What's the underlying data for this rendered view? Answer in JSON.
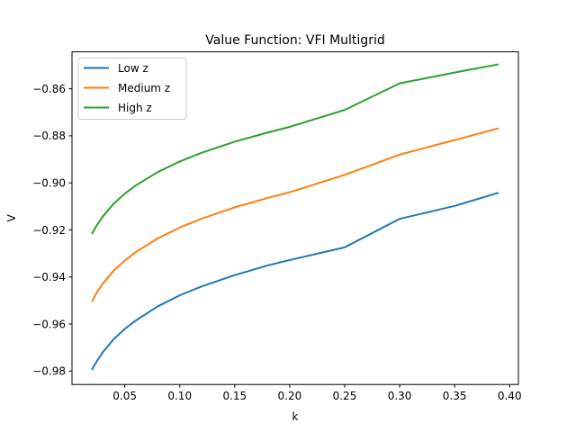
{
  "chart_data": {
    "type": "line",
    "title": "Value Function: VFI Multigrid",
    "xlabel": "k",
    "ylabel": "V",
    "xlim": [
      0.002,
      0.408
    ],
    "ylim": [
      -0.9857,
      -0.8443
    ],
    "xticks": [
      0.05,
      0.1,
      0.15,
      0.2,
      0.25,
      0.3,
      0.35,
      0.4
    ],
    "xtick_labels": [
      "0.05",
      "0.10",
      "0.15",
      "0.20",
      "0.25",
      "0.30",
      "0.35",
      "0.40"
    ],
    "yticks": [
      -0.98,
      -0.96,
      -0.94,
      -0.92,
      -0.9,
      -0.88,
      -0.86
    ],
    "ytick_labels": [
      "−0.98",
      "−0.96",
      "−0.94",
      "−0.92",
      "−0.90",
      "−0.88",
      "−0.86"
    ],
    "grid": false,
    "legend_position": "top-left",
    "x": [
      0.02,
      0.025,
      0.03,
      0.04,
      0.05,
      0.06,
      0.08,
      0.1,
      0.12,
      0.15,
      0.18,
      0.2,
      0.25,
      0.3,
      0.35,
      0.39
    ],
    "series": [
      {
        "name": "Low z",
        "color": "#1f77b4",
        "values": [
          -0.9795,
          -0.9755,
          -0.972,
          -0.9664,
          -0.9621,
          -0.9585,
          -0.9525,
          -0.9478,
          -0.944,
          -0.9392,
          -0.9351,
          -0.9328,
          -0.9274,
          -0.9153,
          -0.9098,
          -0.9042
        ]
      },
      {
        "name": "Medium z",
        "color": "#ff7f0e",
        "values": [
          -0.9505,
          -0.9463,
          -0.9428,
          -0.9373,
          -0.933,
          -0.9294,
          -0.9236,
          -0.919,
          -0.9152,
          -0.9104,
          -0.9064,
          -0.904,
          -0.8966,
          -0.888,
          -0.8818,
          -0.8768
        ]
      },
      {
        "name": "High z",
        "color": "#2ca02c",
        "values": [
          -0.9217,
          -0.9177,
          -0.9143,
          -0.9088,
          -0.9046,
          -0.9011,
          -0.8954,
          -0.8909,
          -0.8872,
          -0.8825,
          -0.8786,
          -0.8762,
          -0.869,
          -0.8577,
          -0.8531,
          -0.8496
        ]
      }
    ]
  }
}
